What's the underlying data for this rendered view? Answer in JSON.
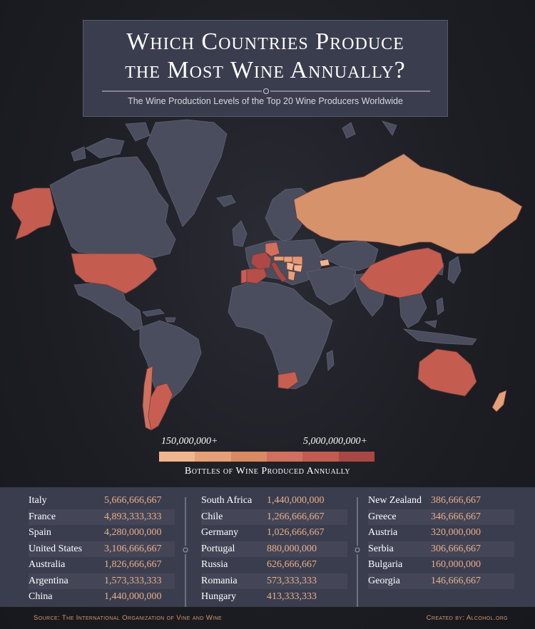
{
  "title": {
    "line1": "Which Countries Produce",
    "line2": "the Most Wine Annually?",
    "subtitle": "The Wine Production Levels of the Top 20 Wine Producers Worldwide"
  },
  "legend": {
    "min_label": "150,000,000+",
    "max_label": "5,000,000,000+",
    "caption": "Bottles of Wine Produced Annually",
    "colors": [
      "#f0b690",
      "#e5a07a",
      "#d98a64",
      "#d0705d",
      "#c35c50",
      "#a84845"
    ]
  },
  "colors": {
    "land": "#4a4d5d",
    "border": "#5f6274",
    "panel": "#3a3d4e",
    "value_text": "#e9b08a",
    "footer_text": "#d89470"
  },
  "map_data": {
    "type": "choropleth",
    "unit": "bottles per year",
    "highlighted": [
      {
        "country": "Italy",
        "value": 5666666667
      },
      {
        "country": "France",
        "value": 4893333333
      },
      {
        "country": "Spain",
        "value": 4280000000
      },
      {
        "country": "United States",
        "value": 3106666667
      },
      {
        "country": "Australia",
        "value": 1826666667
      },
      {
        "country": "Argentina",
        "value": 1573333333
      },
      {
        "country": "China",
        "value": 1440000000
      },
      {
        "country": "South Africa",
        "value": 1440000000
      },
      {
        "country": "Chile",
        "value": 1266666667
      },
      {
        "country": "Germany",
        "value": 1026666667
      },
      {
        "country": "Portugal",
        "value": 880000000
      },
      {
        "country": "Russia",
        "value": 626666667
      },
      {
        "country": "Romania",
        "value": 573333333
      },
      {
        "country": "Hungary",
        "value": 413333333
      },
      {
        "country": "New Zealand",
        "value": 386666667
      },
      {
        "country": "Greece",
        "value": 346666667
      },
      {
        "country": "Austria",
        "value": 320000000
      },
      {
        "country": "Serbia",
        "value": 306666667
      },
      {
        "country": "Bulgaria",
        "value": 160000000
      },
      {
        "country": "Georgia",
        "value": 146666667
      }
    ]
  },
  "table": {
    "columns": [
      [
        {
          "name": "Italy",
          "value": "5,666,666,667"
        },
        {
          "name": "France",
          "value": "4,893,333,333"
        },
        {
          "name": "Spain",
          "value": "4,280,000,000"
        },
        {
          "name": "United States",
          "value": "3,106,666,667"
        },
        {
          "name": "Australia",
          "value": "1,826,666,667"
        },
        {
          "name": "Argentina",
          "value": "1,573,333,333"
        },
        {
          "name": "China",
          "value": "1,440,000,000"
        }
      ],
      [
        {
          "name": "South Africa",
          "value": "1,440,000,000"
        },
        {
          "name": "Chile",
          "value": "1,266,666,667"
        },
        {
          "name": "Germany",
          "value": "1,026,666,667"
        },
        {
          "name": "Portugal",
          "value": "880,000,000"
        },
        {
          "name": "Russia",
          "value": "626,666,667"
        },
        {
          "name": "Romania",
          "value": "573,333,333"
        },
        {
          "name": "Hungary",
          "value": "413,333,333"
        }
      ],
      [
        {
          "name": "New Zealand",
          "value": "386,666,667"
        },
        {
          "name": "Greece",
          "value": "346,666,667"
        },
        {
          "name": "Austria",
          "value": "320,000,000"
        },
        {
          "name": "Serbia",
          "value": "306,666,667"
        },
        {
          "name": "Bulgaria",
          "value": "160,000,000"
        },
        {
          "name": "Georgia",
          "value": "146,666,667"
        }
      ]
    ]
  },
  "footer": {
    "source": "Source: The International Organization of Vine and Wine",
    "credit": "Created by: Alcohol.org"
  }
}
